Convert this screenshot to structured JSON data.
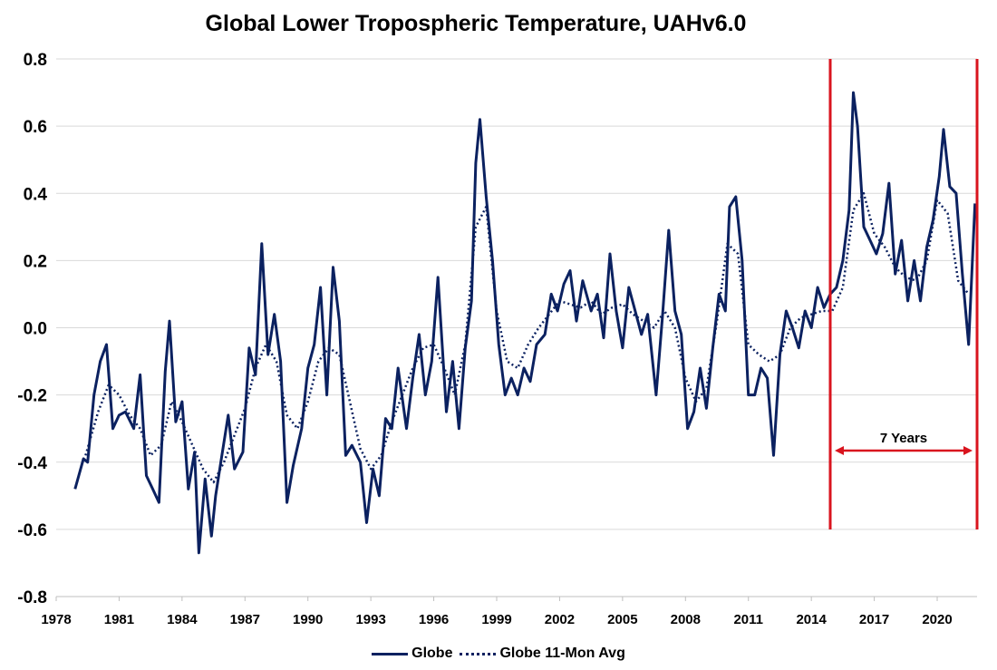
{
  "chart_data": {
    "type": "line",
    "title": "Global Lower Tropospheric Temperature, UAHv6.0",
    "xlabel": "",
    "ylabel": "",
    "xlim": [
      1978,
      2021.9
    ],
    "ylim": [
      -0.8,
      0.8
    ],
    "x_ticks": [
      1978,
      1981,
      1984,
      1987,
      1990,
      1993,
      1996,
      1999,
      2002,
      2005,
      2008,
      2011,
      2014,
      2017,
      2020
    ],
    "y_ticks": [
      -0.8,
      -0.6,
      -0.4,
      -0.2,
      0.0,
      0.2,
      0.4,
      0.6,
      0.8
    ],
    "y_tick_labels": [
      "-0.8",
      "-0.6",
      "-0.4",
      "-0.2",
      "0.0",
      "0.2",
      "0.4",
      "0.6",
      "0.8"
    ],
    "grid": "horizontal",
    "legend_position": "bottom",
    "series": [
      {
        "name": "Globe",
        "style": "solid",
        "color": "#0b2160",
        "x": [
          1978.9,
          1979.3,
          1979.5,
          1979.8,
          1980.1,
          1980.4,
          1980.7,
          1981.0,
          1981.3,
          1981.7,
          1982.0,
          1982.3,
          1982.6,
          1982.9,
          1983.2,
          1983.4,
          1983.7,
          1984.0,
          1984.3,
          1984.6,
          1984.8,
          1985.1,
          1985.4,
          1985.6,
          1985.9,
          1986.2,
          1986.5,
          1986.9,
          1987.2,
          1987.5,
          1987.8,
          1988.1,
          1988.4,
          1988.7,
          1989.0,
          1989.3,
          1989.7,
          1990.0,
          1990.3,
          1990.6,
          1990.9,
          1991.2,
          1991.5,
          1991.8,
          1992.1,
          1992.5,
          1992.8,
          1993.1,
          1993.4,
          1993.7,
          1994.0,
          1994.3,
          1994.7,
          1995.0,
          1995.3,
          1995.6,
          1995.9,
          1996.2,
          1996.6,
          1996.9,
          1997.2,
          1997.5,
          1997.8,
          1998.0,
          1998.2,
          1998.5,
          1998.8,
          1999.1,
          1999.4,
          1999.7,
          2000.0,
          2000.3,
          2000.6,
          2000.9,
          2001.3,
          2001.6,
          2001.9,
          2002.2,
          2002.5,
          2002.8,
          2003.1,
          2003.5,
          2003.8,
          2004.1,
          2004.4,
          2004.7,
          2005.0,
          2005.3,
          2005.6,
          2005.9,
          2006.2,
          2006.6,
          2006.9,
          2007.2,
          2007.5,
          2007.8,
          2008.1,
          2008.4,
          2008.7,
          2009.0,
          2009.3,
          2009.6,
          2009.9,
          2010.1,
          2010.4,
          2010.7,
          2011.0,
          2011.3,
          2011.6,
          2011.9,
          2012.2,
          2012.5,
          2012.8,
          2013.1,
          2013.4,
          2013.7,
          2014.0,
          2014.3,
          2014.6,
          2014.9,
          2015.2,
          2015.5,
          2015.8,
          2016.0,
          2016.2,
          2016.5,
          2016.8,
          2017.1,
          2017.4,
          2017.7,
          2018.0,
          2018.3,
          2018.6,
          2018.9,
          2019.2,
          2019.5,
          2019.8,
          2020.1,
          2020.3,
          2020.6,
          2020.9,
          2021.2,
          2021.5,
          2021.8
        ],
        "values": [
          -0.48,
          -0.39,
          -0.4,
          -0.2,
          -0.1,
          -0.05,
          -0.3,
          -0.26,
          -0.25,
          -0.3,
          -0.14,
          -0.44,
          -0.48,
          -0.52,
          -0.13,
          0.02,
          -0.28,
          -0.22,
          -0.48,
          -0.37,
          -0.67,
          -0.45,
          -0.62,
          -0.5,
          -0.38,
          -0.26,
          -0.42,
          -0.37,
          -0.06,
          -0.14,
          0.25,
          -0.08,
          0.04,
          -0.1,
          -0.52,
          -0.41,
          -0.3,
          -0.12,
          -0.05,
          0.12,
          -0.2,
          0.18,
          0.02,
          -0.38,
          -0.35,
          -0.4,
          -0.58,
          -0.42,
          -0.5,
          -0.27,
          -0.3,
          -0.12,
          -0.3,
          -0.15,
          -0.02,
          -0.2,
          -0.1,
          0.15,
          -0.25,
          -0.1,
          -0.3,
          -0.06,
          0.08,
          0.49,
          0.62,
          0.39,
          0.2,
          -0.05,
          -0.2,
          -0.15,
          -0.2,
          -0.12,
          -0.16,
          -0.05,
          -0.02,
          0.1,
          0.05,
          0.13,
          0.17,
          0.02,
          0.14,
          0.05,
          0.1,
          -0.03,
          0.22,
          0.05,
          -0.06,
          0.12,
          0.05,
          -0.02,
          0.04,
          -0.2,
          0.03,
          0.29,
          0.05,
          -0.02,
          -0.3,
          -0.25,
          -0.12,
          -0.24,
          -0.06,
          0.1,
          0.05,
          0.36,
          0.39,
          0.2,
          -0.2,
          -0.2,
          -0.12,
          -0.15,
          -0.38,
          -0.08,
          0.05,
          0.0,
          -0.06,
          0.05,
          0.0,
          0.12,
          0.06,
          0.1,
          0.12,
          0.2,
          0.35,
          0.7,
          0.6,
          0.3,
          0.26,
          0.22,
          0.28,
          0.43,
          0.16,
          0.26,
          0.08,
          0.2,
          0.08,
          0.24,
          0.32,
          0.45,
          0.59,
          0.42,
          0.4,
          0.16,
          -0.05,
          0.37
        ]
      },
      {
        "name": "Globe 11-Mon Avg",
        "style": "dotted",
        "color": "#0b2160",
        "x": [
          1979.4,
          1980.0,
          1980.5,
          1981.0,
          1981.5,
          1982.0,
          1982.5,
          1983.0,
          1983.5,
          1984.0,
          1984.5,
          1985.0,
          1985.5,
          1986.0,
          1986.5,
          1987.0,
          1987.5,
          1988.0,
          1988.5,
          1989.0,
          1989.5,
          1990.0,
          1990.5,
          1991.0,
          1991.5,
          1992.0,
          1992.5,
          1993.0,
          1993.5,
          1994.0,
          1994.5,
          1995.0,
          1995.5,
          1996.0,
          1996.5,
          1997.0,
          1997.5,
          1998.0,
          1998.5,
          1999.0,
          1999.5,
          2000.0,
          2000.5,
          2001.0,
          2001.5,
          2002.0,
          2002.5,
          2003.0,
          2003.5,
          2004.0,
          2004.5,
          2005.0,
          2005.5,
          2006.0,
          2006.5,
          2007.0,
          2007.5,
          2008.0,
          2008.5,
          2009.0,
          2009.5,
          2010.0,
          2010.5,
          2011.0,
          2011.5,
          2012.0,
          2012.5,
          2013.0,
          2013.5,
          2014.0,
          2014.5,
          2015.0,
          2015.5,
          2016.0,
          2016.5,
          2017.0,
          2017.5,
          2018.0,
          2018.5,
          2019.0,
          2019.5,
          2020.0,
          2020.5,
          2021.0,
          2021.5
        ],
        "values": [
          -0.38,
          -0.25,
          -0.17,
          -0.2,
          -0.26,
          -0.3,
          -0.38,
          -0.35,
          -0.22,
          -0.28,
          -0.35,
          -0.42,
          -0.46,
          -0.4,
          -0.32,
          -0.24,
          -0.12,
          -0.05,
          -0.1,
          -0.26,
          -0.3,
          -0.22,
          -0.1,
          -0.06,
          -0.08,
          -0.22,
          -0.36,
          -0.42,
          -0.38,
          -0.28,
          -0.2,
          -0.12,
          -0.06,
          -0.05,
          -0.12,
          -0.2,
          -0.05,
          0.3,
          0.36,
          0.05,
          -0.1,
          -0.12,
          -0.05,
          0.0,
          0.04,
          0.08,
          0.07,
          0.06,
          0.08,
          0.04,
          0.06,
          0.07,
          0.04,
          0.02,
          0.0,
          0.05,
          0.0,
          -0.15,
          -0.22,
          -0.18,
          0.02,
          0.25,
          0.22,
          -0.05,
          -0.08,
          -0.1,
          -0.08,
          0.0,
          0.03,
          0.04,
          0.05,
          0.05,
          0.12,
          0.35,
          0.4,
          0.28,
          0.24,
          0.18,
          0.15,
          0.14,
          0.2,
          0.38,
          0.34,
          0.14,
          0.1
        ]
      }
    ],
    "annotation": {
      "label": "7 Years",
      "start_x": 2014.9,
      "end_x": 2021.9,
      "color": "#d9141e"
    }
  },
  "legend": {
    "solid_label": "Globe",
    "dotted_label": "Globe 11-Mon Avg"
  }
}
